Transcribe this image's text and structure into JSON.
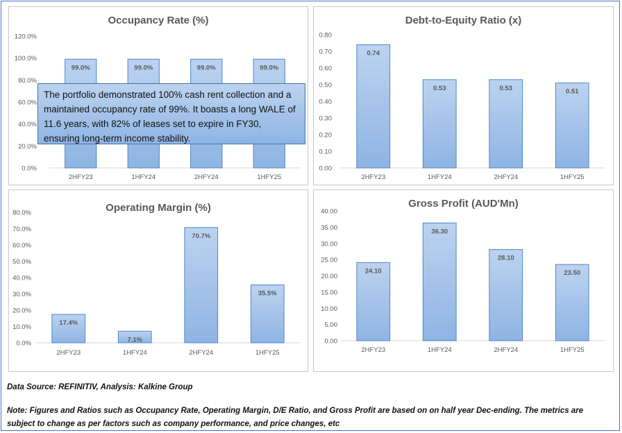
{
  "colors": {
    "bar_fill_top": "#bcd3f0",
    "bar_fill_bottom": "#8fb4e3",
    "bar_stroke": "#4f86c6",
    "axis_text": "#595959",
    "frame_border": "#4472c4"
  },
  "callout": {
    "text": "The portfolio demonstrated 100% cash rent collection and a maintained occupancy rate of 99%. It boasts a long WALE of 11.6 years, with 82% of leases set to expire in FY30, ensuring long-term income stability."
  },
  "footer": {
    "source": "Data Source: REFINITIV, Analysis: Kalkine Group",
    "note": "Note: Figures and Ratios such as Occupancy Rate, Operating Margin, D/E Ratio, and Gross Profit are based on on half year Dec-ending. The metrics are subject to change as per factors such as company performance, and price changes, etc"
  },
  "chart_data": [
    {
      "type": "bar",
      "title": "Occupancy Rate (%)",
      "categories": [
        "2HFY23",
        "1HFY24",
        "2HFY24",
        "1HFY25"
      ],
      "values": [
        99.0,
        99.0,
        99.0,
        99.0
      ],
      "value_labels": [
        "99.0%",
        "99.0%",
        "99.0%",
        "99.0%"
      ],
      "yticks": [
        "0.0%",
        "20.0%",
        "40.0%",
        "60.0%",
        "80.0%",
        "100.0%",
        "120.0%"
      ],
      "ylim": [
        0,
        120
      ],
      "grid": false,
      "legend": "none"
    },
    {
      "type": "bar",
      "title": "Debt-to-Equity Ratio (x)",
      "categories": [
        "2HFY23",
        "1HFY24",
        "2HFY24",
        "1HFY25"
      ],
      "values": [
        0.74,
        0.53,
        0.53,
        0.51
      ],
      "value_labels": [
        "0.74",
        "0.53",
        "0.53",
        "0.51"
      ],
      "yticks": [
        "0.00",
        "0.10",
        "0.20",
        "0.30",
        "0.40",
        "0.50",
        "0.60",
        "0.70",
        "0.80"
      ],
      "ylim": [
        0,
        0.8
      ],
      "grid": false,
      "legend": "none"
    },
    {
      "type": "bar",
      "title": "Operating Margin (%)",
      "categories": [
        "2HFY23",
        "1HFY24",
        "2HFY24",
        "1HFY25"
      ],
      "values": [
        17.4,
        7.1,
        70.7,
        35.5
      ],
      "value_labels": [
        "17.4%",
        "7.1%",
        "70.7%",
        "35.5%"
      ],
      "yticks": [
        "0.0%",
        "10.0%",
        "20.0%",
        "30.0%",
        "40.0%",
        "50.0%",
        "60.0%",
        "70.0%",
        "80.0%"
      ],
      "ylim": [
        0,
        80
      ],
      "grid": false,
      "legend": "none"
    },
    {
      "type": "bar",
      "title": "Gross Profit (AUD'Mn)",
      "categories": [
        "2HFY23",
        "1HFY24",
        "2HFY24",
        "1HFY25"
      ],
      "values": [
        24.1,
        36.3,
        28.1,
        23.5
      ],
      "value_labels": [
        "24.10",
        "36.30",
        "28.10",
        "23.50"
      ],
      "yticks": [
        "0.00",
        "5.00",
        "10.00",
        "15.00",
        "20.00",
        "25.00",
        "30.00",
        "35.00",
        "40.00"
      ],
      "ylim": [
        0,
        40
      ],
      "grid": false,
      "legend": "none"
    }
  ]
}
